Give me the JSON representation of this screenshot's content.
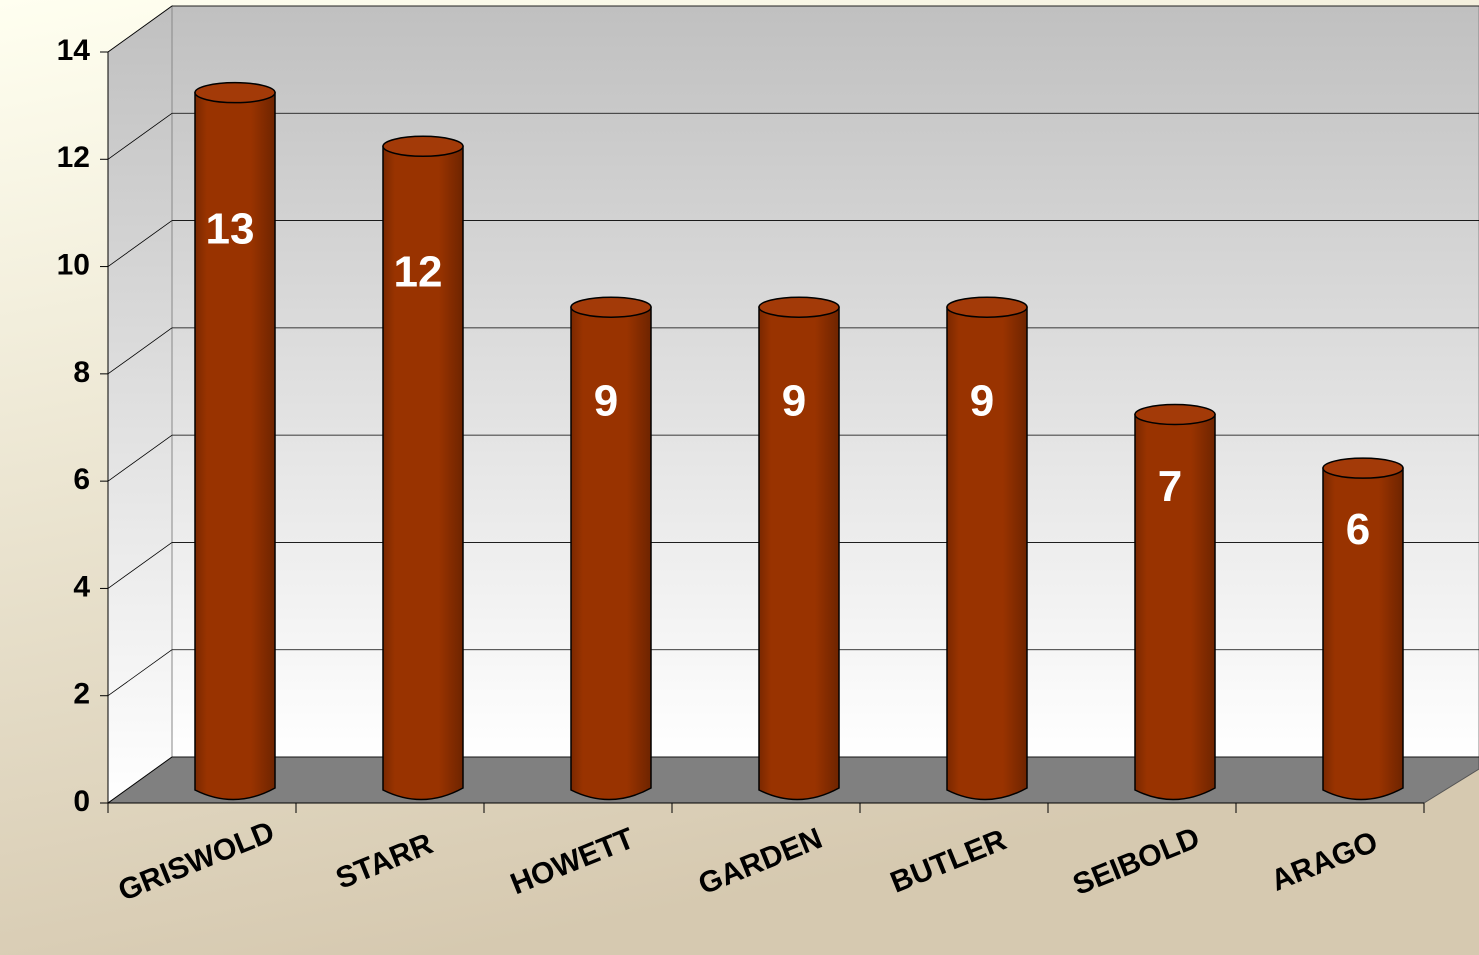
{
  "chart_data": {
    "type": "bar",
    "categories": [
      "GRISWOLD",
      "STARR",
      "HOWETT",
      "GARDEN",
      "BUTLER",
      "SEIBOLD",
      "ARAGO"
    ],
    "values": [
      13,
      12,
      9,
      9,
      9,
      7,
      6
    ],
    "color": "#993300",
    "ylim": [
      0,
      14
    ],
    "yticks": [
      0,
      2,
      4,
      6,
      8,
      10,
      12,
      14
    ],
    "grid": true
  }
}
